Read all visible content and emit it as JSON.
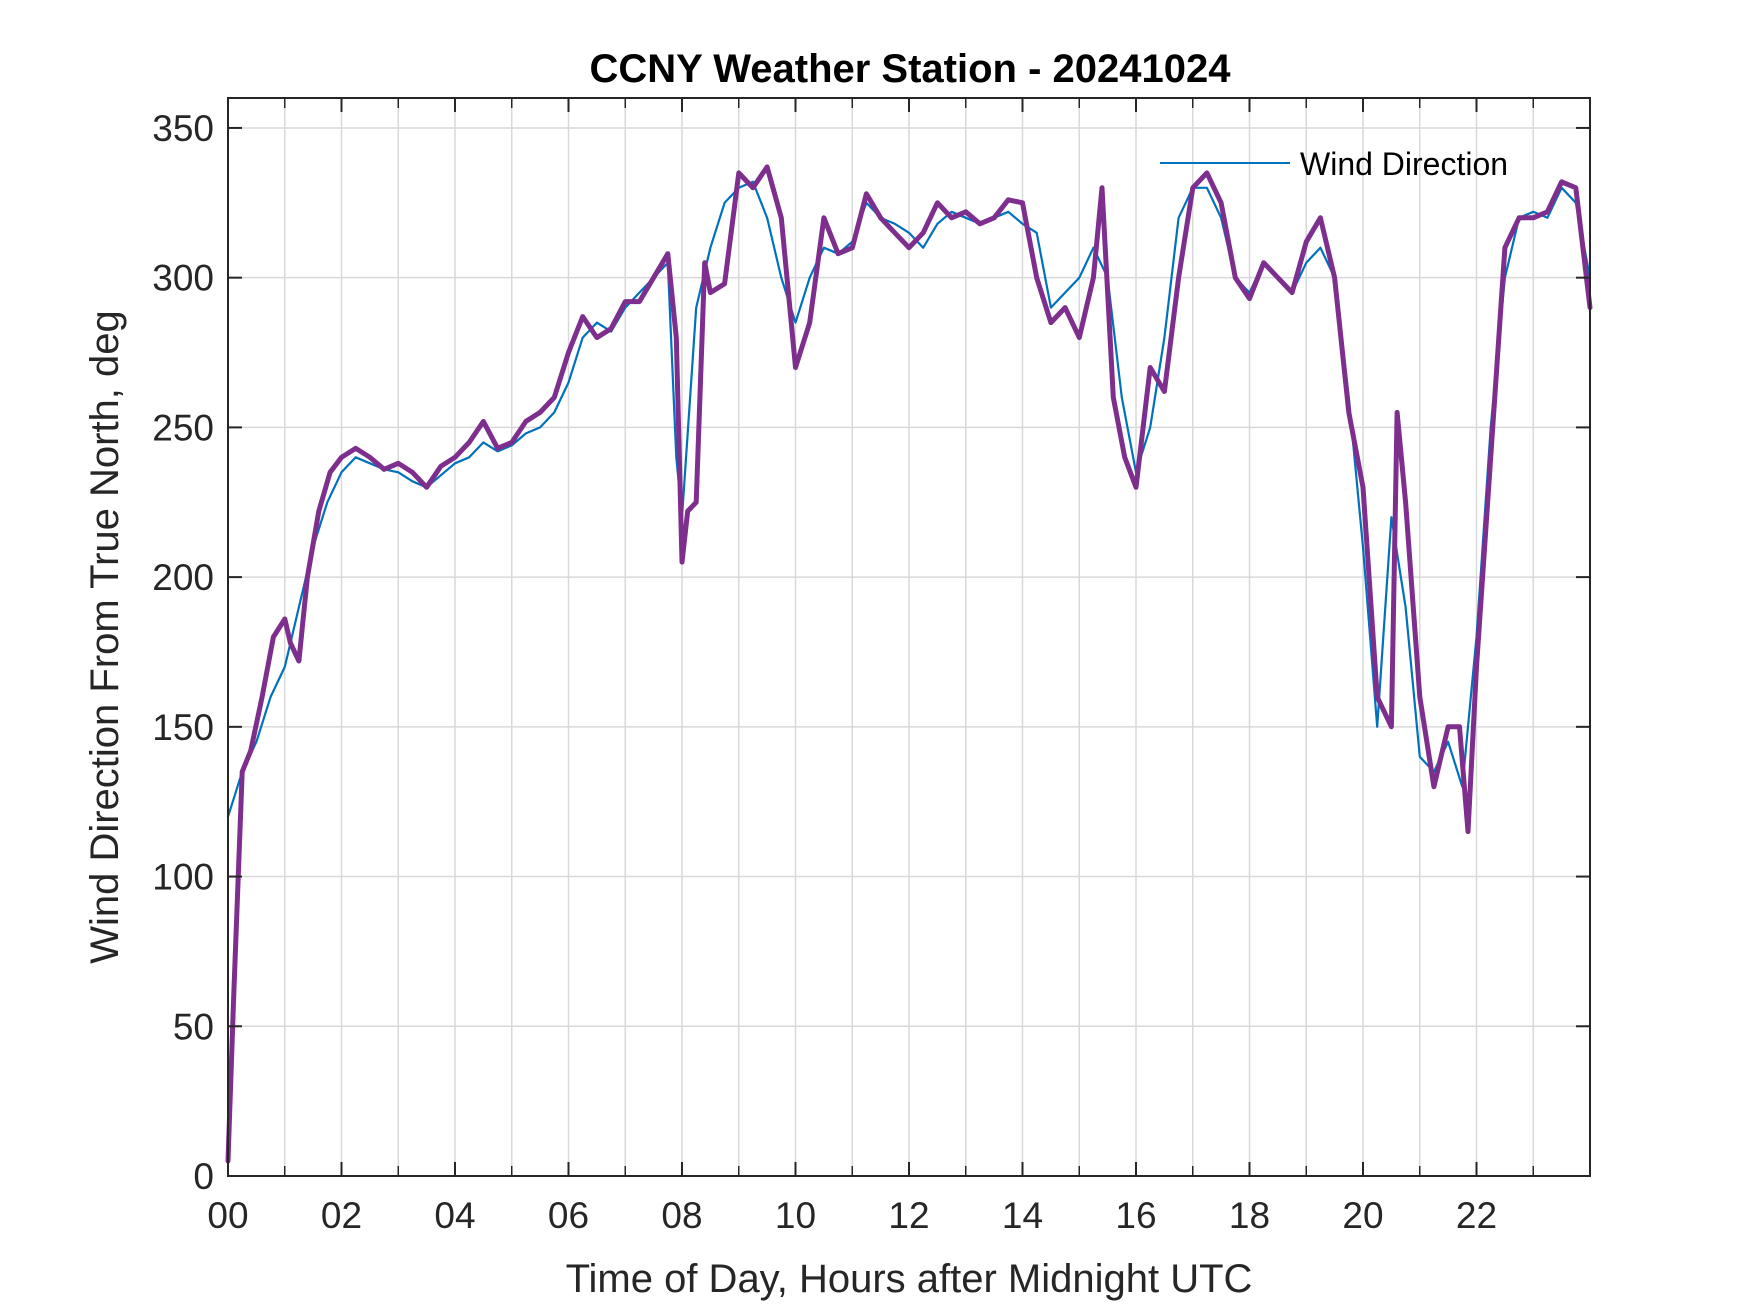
{
  "chart_data": {
    "type": "line",
    "title": "CCNY Weather Station - 20241024",
    "xlabel": "Time of Day, Hours after Midnight UTC",
    "ylabel": "Wind Direction From True North, deg",
    "xlim": [
      0,
      24
    ],
    "ylim": [
      0,
      360
    ],
    "x_tick_values": [
      0,
      2,
      4,
      6,
      8,
      10,
      12,
      14,
      16,
      18,
      20,
      22
    ],
    "x_tick_labels": [
      "00",
      "02",
      "04",
      "06",
      "08",
      "10",
      "12",
      "14",
      "16",
      "18",
      "20",
      "22"
    ],
    "y_tick_values": [
      0,
      50,
      100,
      150,
      200,
      250,
      300,
      350
    ],
    "y_tick_labels": [
      "0",
      "50",
      "100",
      "150",
      "200",
      "250",
      "300",
      "350"
    ],
    "grid": true,
    "legend": {
      "placement": "top-right",
      "entries": [
        "Wind Direction"
      ]
    },
    "series": [
      {
        "name": "Wind Direction",
        "color": "#0072BD",
        "style": "thin-noisy",
        "x": [
          0.0,
          0.25,
          0.5,
          0.75,
          1.0,
          1.25,
          1.5,
          1.75,
          2.0,
          2.25,
          2.5,
          2.75,
          3.0,
          3.25,
          3.5,
          3.75,
          4.0,
          4.25,
          4.5,
          4.75,
          5.0,
          5.25,
          5.5,
          5.75,
          6.0,
          6.25,
          6.5,
          6.75,
          7.0,
          7.25,
          7.5,
          7.75,
          7.9,
          8.0,
          8.25,
          8.5,
          8.75,
          9.0,
          9.25,
          9.5,
          9.75,
          10.0,
          10.25,
          10.5,
          10.75,
          11.0,
          11.25,
          11.5,
          11.75,
          12.0,
          12.25,
          12.5,
          12.75,
          13.0,
          13.25,
          13.5,
          13.75,
          14.0,
          14.25,
          14.5,
          14.75,
          15.0,
          15.25,
          15.5,
          15.75,
          16.0,
          16.25,
          16.5,
          16.75,
          17.0,
          17.25,
          17.5,
          17.75,
          18.0,
          18.25,
          18.5,
          18.75,
          19.0,
          19.25,
          19.5,
          19.75,
          20.0,
          20.25,
          20.5,
          20.75,
          21.0,
          21.25,
          21.5,
          21.75,
          22.0,
          22.25,
          22.5,
          22.75,
          23.0,
          23.25,
          23.5,
          23.75,
          24.0
        ],
        "values": [
          120,
          135,
          145,
          160,
          170,
          190,
          210,
          225,
          235,
          240,
          238,
          236,
          235,
          232,
          230,
          234,
          238,
          240,
          245,
          242,
          244,
          248,
          250,
          255,
          265,
          280,
          285,
          282,
          290,
          295,
          300,
          305,
          240,
          220,
          290,
          310,
          325,
          330,
          332,
          320,
          300,
          285,
          300,
          310,
          308,
          312,
          325,
          320,
          318,
          315,
          310,
          318,
          322,
          320,
          318,
          320,
          322,
          318,
          315,
          290,
          295,
          300,
          310,
          300,
          260,
          235,
          250,
          280,
          320,
          330,
          330,
          320,
          300,
          295,
          305,
          300,
          295,
          305,
          310,
          300,
          260,
          210,
          150,
          220,
          190,
          140,
          135,
          145,
          130,
          180,
          250,
          300,
          320,
          322,
          320,
          330,
          325,
          300
        ]
      },
      {
        "name": "",
        "color": "#7E2F8E",
        "style": "thick",
        "x": [
          0.0,
          0.1,
          0.25,
          0.4,
          0.6,
          0.8,
          1.0,
          1.1,
          1.25,
          1.4,
          1.6,
          1.8,
          2.0,
          2.25,
          2.5,
          2.75,
          3.0,
          3.25,
          3.5,
          3.75,
          4.0,
          4.25,
          4.5,
          4.75,
          5.0,
          5.25,
          5.5,
          5.75,
          6.0,
          6.25,
          6.5,
          6.75,
          7.0,
          7.25,
          7.5,
          7.75,
          7.9,
          8.0,
          8.1,
          8.25,
          8.4,
          8.5,
          8.75,
          9.0,
          9.25,
          9.5,
          9.75,
          10.0,
          10.25,
          10.5,
          10.75,
          11.0,
          11.25,
          11.5,
          11.75,
          12.0,
          12.25,
          12.5,
          12.75,
          13.0,
          13.25,
          13.5,
          13.75,
          14.0,
          14.25,
          14.5,
          14.75,
          15.0,
          15.25,
          15.4,
          15.6,
          15.8,
          16.0,
          16.25,
          16.5,
          16.75,
          17.0,
          17.25,
          17.5,
          17.75,
          18.0,
          18.25,
          18.5,
          18.75,
          19.0,
          19.25,
          19.5,
          19.75,
          20.0,
          20.25,
          20.5,
          20.6,
          20.75,
          21.0,
          21.25,
          21.5,
          21.7,
          21.85,
          22.0,
          22.25,
          22.5,
          22.75,
          23.0,
          23.25,
          23.5,
          23.75,
          24.0
        ],
        "values": [
          5,
          60,
          135,
          142,
          160,
          180,
          186,
          178,
          172,
          200,
          222,
          235,
          240,
          243,
          240,
          236,
          238,
          235,
          230,
          237,
          240,
          245,
          252,
          243,
          245,
          252,
          255,
          260,
          275,
          287,
          280,
          283,
          292,
          292,
          300,
          308,
          280,
          205,
          222,
          225,
          305,
          295,
          298,
          335,
          330,
          337,
          320,
          270,
          285,
          320,
          308,
          310,
          328,
          320,
          315,
          310,
          315,
          325,
          320,
          322,
          318,
          320,
          326,
          325,
          300,
          285,
          290,
          280,
          300,
          330,
          260,
          240,
          230,
          270,
          262,
          300,
          330,
          335,
          325,
          300,
          293,
          305,
          300,
          295,
          312,
          320,
          300,
          255,
          230,
          160,
          150,
          255,
          225,
          160,
          130,
          150,
          150,
          115,
          170,
          240,
          310,
          320,
          320,
          322,
          332,
          330,
          290
        ]
      }
    ]
  }
}
